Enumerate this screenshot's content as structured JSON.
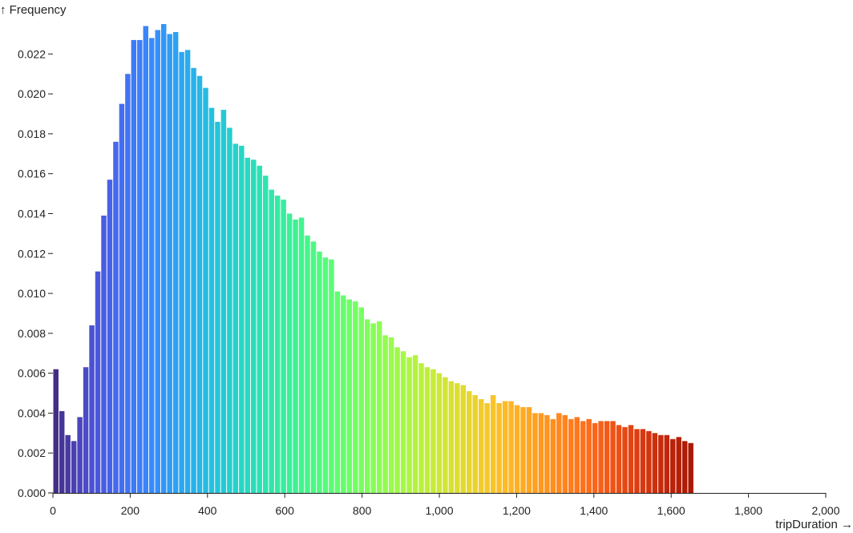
{
  "chart_data": {
    "type": "bar",
    "title": "",
    "xlabel": "tripDuration →",
    "ylabel": "↑ Frequency",
    "xlim": [
      0,
      2000
    ],
    "ylim": [
      0,
      0.0235
    ],
    "bin_width": 15.5,
    "x_ticks": [
      0,
      200,
      400,
      600,
      800,
      1000,
      1200,
      1400,
      1600,
      1800,
      2000
    ],
    "x_tick_labels": [
      "0",
      "200",
      "400",
      "600",
      "800",
      "1,000",
      "1,200",
      "1,400",
      "1,600",
      "1,800",
      "2,000"
    ],
    "y_ticks": [
      0,
      0.002,
      0.004,
      0.006,
      0.008,
      0.01,
      0.012,
      0.014,
      0.016,
      0.018,
      0.02,
      0.022
    ],
    "y_tick_labels": [
      "0.000",
      "0.002",
      "0.004",
      "0.006",
      "0.008",
      "0.010",
      "0.012",
      "0.014",
      "0.016",
      "0.018",
      "0.020",
      "0.022"
    ],
    "grid": false,
    "color_scale": "turbo",
    "values": [
      0.0062,
      0.0041,
      0.0029,
      0.0026,
      0.0038,
      0.0063,
      0.0084,
      0.0111,
      0.0139,
      0.0157,
      0.0176,
      0.0195,
      0.021,
      0.0227,
      0.0227,
      0.0234,
      0.0228,
      0.0232,
      0.0235,
      0.023,
      0.0231,
      0.0221,
      0.0222,
      0.0213,
      0.0209,
      0.0203,
      0.0193,
      0.0186,
      0.0192,
      0.0183,
      0.0175,
      0.0174,
      0.0168,
      0.0167,
      0.0164,
      0.0159,
      0.0152,
      0.0149,
      0.0147,
      0.014,
      0.0137,
      0.0138,
      0.0129,
      0.0126,
      0.0121,
      0.0118,
      0.0117,
      0.0101,
      0.0099,
      0.0097,
      0.0096,
      0.0093,
      0.0087,
      0.0085,
      0.0086,
      0.0079,
      0.0078,
      0.0073,
      0.0071,
      0.0068,
      0.0069,
      0.0065,
      0.0063,
      0.0062,
      0.006,
      0.0058,
      0.0056,
      0.0055,
      0.0054,
      0.0051,
      0.0049,
      0.0047,
      0.0045,
      0.0049,
      0.0045,
      0.0046,
      0.0046,
      0.0044,
      0.0043,
      0.0043,
      0.004,
      0.004,
      0.0039,
      0.0037,
      0.004,
      0.0039,
      0.0037,
      0.0038,
      0.0036,
      0.0037,
      0.0035,
      0.0036,
      0.0036,
      0.0036,
      0.0034,
      0.0033,
      0.0034,
      0.0032,
      0.0032,
      0.0031,
      0.003,
      0.0029,
      0.0029,
      0.0027,
      0.0028,
      0.0026,
      0.0025
    ]
  }
}
